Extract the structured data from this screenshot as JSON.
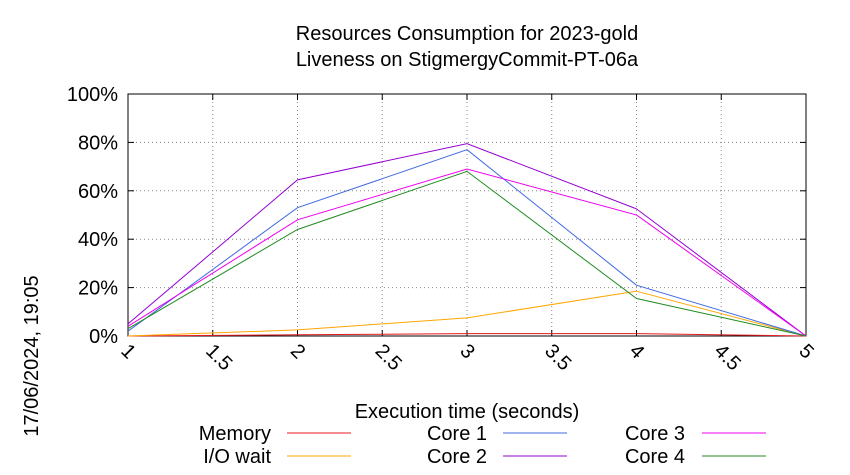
{
  "chart_data": {
    "type": "line",
    "title": "Resources Consumption for 2023-gold",
    "subtitle": "Liveness on StigmergyCommit-PT-06a",
    "xlabel": "Execution time (seconds)",
    "side_label": "17/06/2024, 19:05",
    "x_ticks": [
      "1",
      "1.5",
      "2",
      "2.5",
      "3",
      "3.5",
      "4",
      "4.5",
      "5"
    ],
    "y_ticks": [
      "0%",
      "20%",
      "40%",
      "60%",
      "80%",
      "100%"
    ],
    "xlim": [
      1,
      5
    ],
    "ylim": [
      0,
      100
    ],
    "grid": true,
    "legend_position": "bottom",
    "x": [
      1,
      2,
      3,
      4,
      5
    ],
    "series": [
      {
        "name": "Memory",
        "color": "#e41a1c",
        "values": [
          0,
          0.5,
          1,
          1,
          0
        ]
      },
      {
        "name": "I/O wait",
        "color": "#ffa500",
        "values": [
          0,
          2.5,
          7.5,
          18.5,
          0
        ]
      },
      {
        "name": "Core 1",
        "color": "#4169e1",
        "values": [
          2,
          53,
          77,
          21,
          0
        ]
      },
      {
        "name": "Core 2",
        "color": "#9400d3",
        "values": [
          5,
          64.5,
          79.5,
          52.5,
          0
        ]
      },
      {
        "name": "Core 3",
        "color": "#ee00ee",
        "values": [
          4,
          48,
          69,
          50,
          0
        ]
      },
      {
        "name": "Core 4",
        "color": "#228b22",
        "values": [
          3,
          44,
          68,
          15.5,
          0
        ]
      }
    ]
  }
}
